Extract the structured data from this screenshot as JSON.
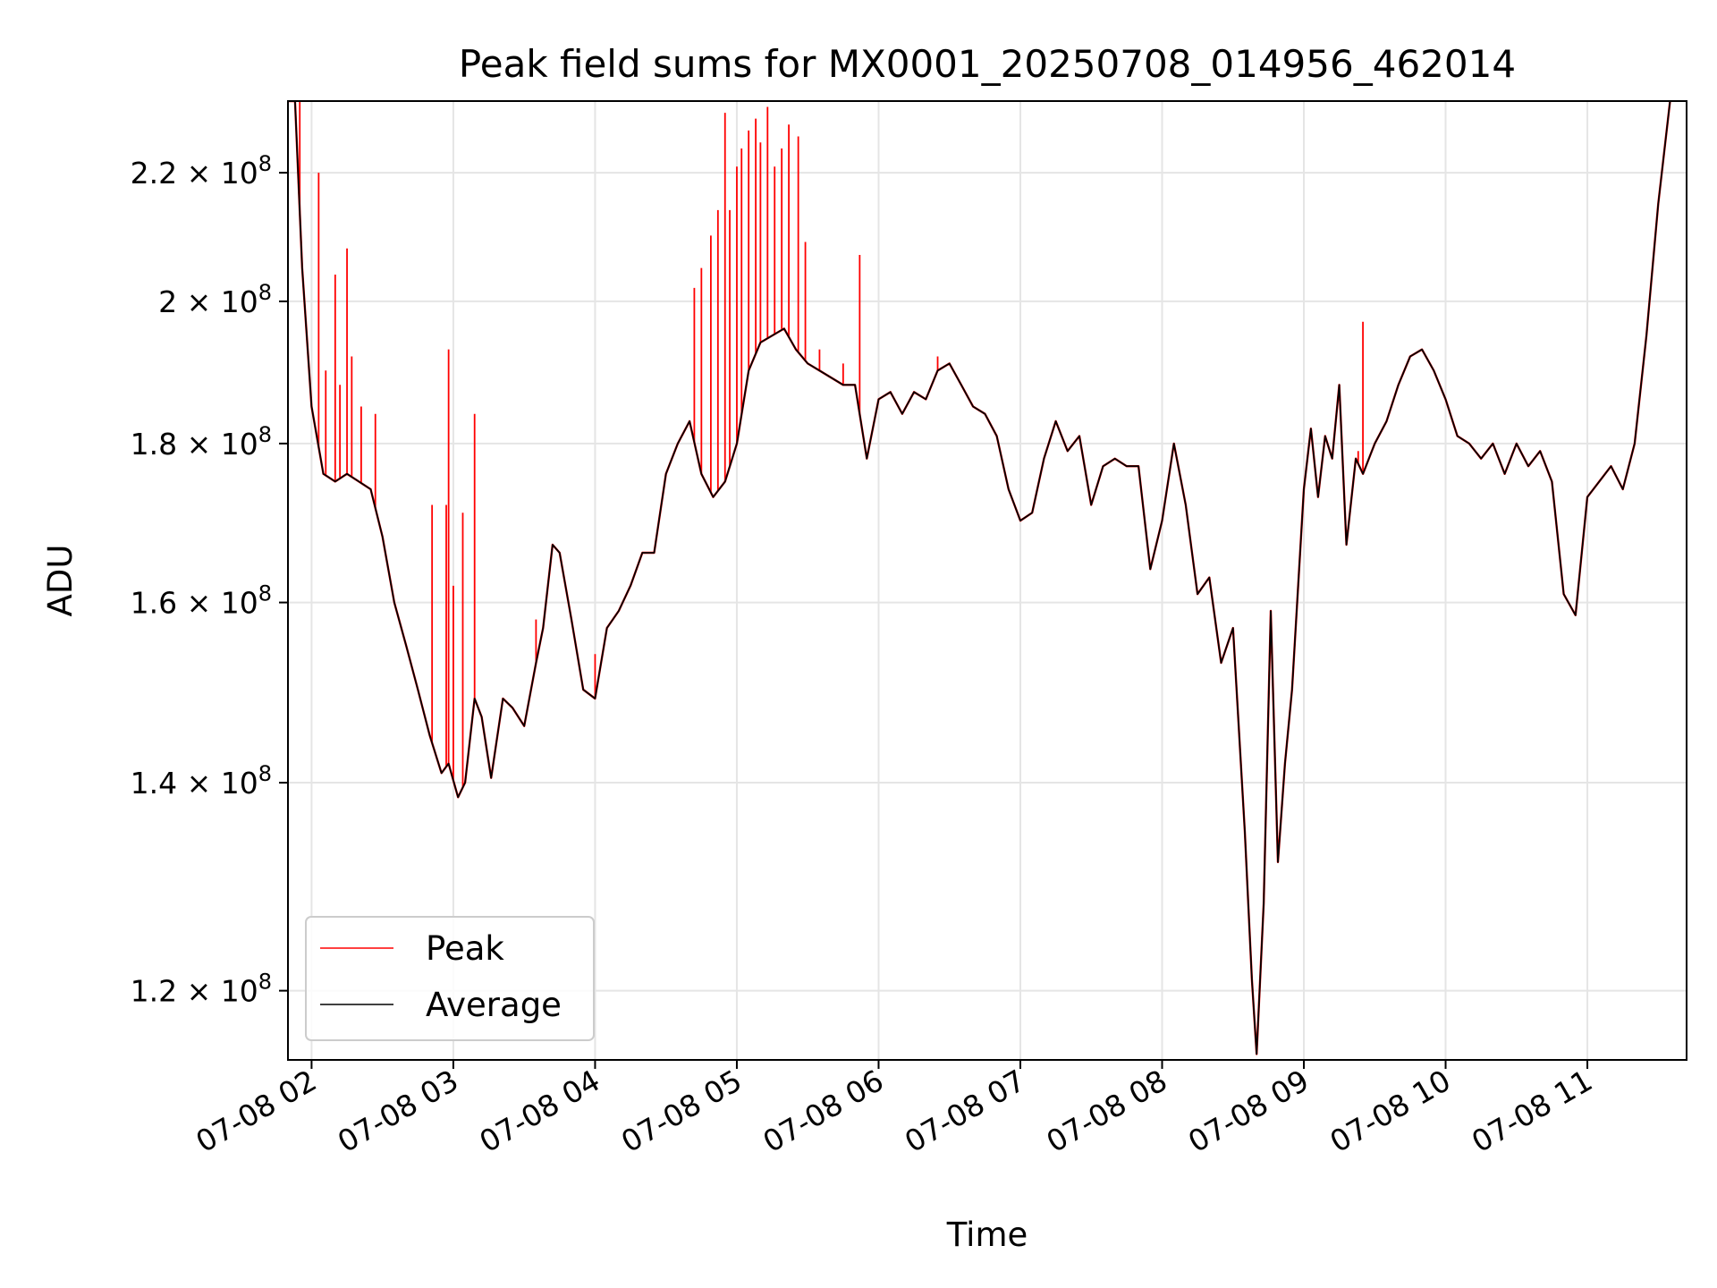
{
  "chart_data": {
    "type": "line",
    "title": "Peak field sums for MX0001_20250708_014956_462014",
    "xlabel": "Time",
    "ylabel": "ADU",
    "yscale": "log",
    "grid": true,
    "legend_position": "lower-left",
    "xlim": [
      "07-08 01:50",
      "07-08 11:42"
    ],
    "ylim": [
      114000000,
      232000000
    ],
    "x_ticks": [
      "07-08 02",
      "07-08 03",
      "07-08 04",
      "07-08 05",
      "07-08 06",
      "07-08 07",
      "07-08 08",
      "07-08 09",
      "07-08 10",
      "07-08 11"
    ],
    "y_ticks": [
      {
        "value": 120000000,
        "mantissa": "1.2",
        "exponent": "8"
      },
      {
        "value": 140000000,
        "mantissa": "1.4",
        "exponent": "8"
      },
      {
        "value": 160000000,
        "mantissa": "1.6",
        "exponent": "8"
      },
      {
        "value": 180000000,
        "mantissa": "1.8",
        "exponent": "8"
      },
      {
        "value": 200000000,
        "mantissa": "2",
        "exponent": "8"
      },
      {
        "value": 220000000,
        "mantissa": "2.2",
        "exponent": "8"
      }
    ],
    "series": [
      {
        "name": "Average",
        "color": "#000000",
        "points": [
          [
            "07-08 01:50",
            232000000
          ],
          [
            "07-08 01:53",
            232000000
          ],
          [
            "07-08 01:56",
            205000000
          ],
          [
            "07-08 02:00",
            185000000
          ],
          [
            "07-08 02:05",
            176000000
          ],
          [
            "07-08 02:10",
            175000000
          ],
          [
            "07-08 02:15",
            176000000
          ],
          [
            "07-08 02:20",
            175000000
          ],
          [
            "07-08 02:25",
            174000000
          ],
          [
            "07-08 02:30",
            168000000
          ],
          [
            "07-08 02:35",
            160000000
          ],
          [
            "07-08 02:40",
            155000000
          ],
          [
            "07-08 02:45",
            150000000
          ],
          [
            "07-08 02:50",
            145000000
          ],
          [
            "07-08 02:55",
            141000000
          ],
          [
            "07-08 02:58",
            142000000
          ],
          [
            "07-08 03:02",
            138500000
          ],
          [
            "07-08 03:05",
            140000000
          ],
          [
            "07-08 03:09",
            149000000
          ],
          [
            "07-08 03:12",
            147000000
          ],
          [
            "07-08 03:16",
            140500000
          ],
          [
            "07-08 03:21",
            149000000
          ],
          [
            "07-08 03:25",
            148000000
          ],
          [
            "07-08 03:30",
            146000000
          ],
          [
            "07-08 03:35",
            153000000
          ],
          [
            "07-08 03:38",
            157000000
          ],
          [
            "07-08 03:42",
            167000000
          ],
          [
            "07-08 03:45",
            166000000
          ],
          [
            "07-08 03:50",
            158000000
          ],
          [
            "07-08 03:55",
            150000000
          ],
          [
            "07-08 04:00",
            149000000
          ],
          [
            "07-08 04:05",
            157000000
          ],
          [
            "07-08 04:10",
            159000000
          ],
          [
            "07-08 04:15",
            162000000
          ],
          [
            "07-08 04:20",
            166000000
          ],
          [
            "07-08 04:25",
            166000000
          ],
          [
            "07-08 04:30",
            176000000
          ],
          [
            "07-08 04:35",
            180000000
          ],
          [
            "07-08 04:40",
            183000000
          ],
          [
            "07-08 04:45",
            176000000
          ],
          [
            "07-08 04:50",
            173000000
          ],
          [
            "07-08 04:55",
            175000000
          ],
          [
            "07-08 05:00",
            180000000
          ],
          [
            "07-08 05:05",
            190000000
          ],
          [
            "07-08 05:10",
            194000000
          ],
          [
            "07-08 05:15",
            195000000
          ],
          [
            "07-08 05:20",
            196000000
          ],
          [
            "07-08 05:25",
            193000000
          ],
          [
            "07-08 05:30",
            191000000
          ],
          [
            "07-08 05:35",
            190000000
          ],
          [
            "07-08 05:40",
            189000000
          ],
          [
            "07-08 05:45",
            188000000
          ],
          [
            "07-08 05:50",
            188000000
          ],
          [
            "07-08 05:55",
            178000000
          ],
          [
            "07-08 06:00",
            186000000
          ],
          [
            "07-08 06:05",
            187000000
          ],
          [
            "07-08 06:10",
            184000000
          ],
          [
            "07-08 06:15",
            187000000
          ],
          [
            "07-08 06:20",
            186000000
          ],
          [
            "07-08 06:25",
            190000000
          ],
          [
            "07-08 06:30",
            191000000
          ],
          [
            "07-08 06:35",
            188000000
          ],
          [
            "07-08 06:40",
            185000000
          ],
          [
            "07-08 06:45",
            184000000
          ],
          [
            "07-08 06:50",
            181000000
          ],
          [
            "07-08 06:55",
            174000000
          ],
          [
            "07-08 07:00",
            170000000
          ],
          [
            "07-08 07:05",
            171000000
          ],
          [
            "07-08 07:10",
            178000000
          ],
          [
            "07-08 07:15",
            183000000
          ],
          [
            "07-08 07:20",
            179000000
          ],
          [
            "07-08 07:25",
            181000000
          ],
          [
            "07-08 07:30",
            172000000
          ],
          [
            "07-08 07:35",
            177000000
          ],
          [
            "07-08 07:40",
            178000000
          ],
          [
            "07-08 07:45",
            177000000
          ],
          [
            "07-08 07:50",
            177000000
          ],
          [
            "07-08 07:55",
            164000000
          ],
          [
            "07-08 08:00",
            170000000
          ],
          [
            "07-08 08:05",
            180000000
          ],
          [
            "07-08 08:10",
            172000000
          ],
          [
            "07-08 08:15",
            161000000
          ],
          [
            "07-08 08:20",
            163000000
          ],
          [
            "07-08 08:25",
            153000000
          ],
          [
            "07-08 08:30",
            157000000
          ],
          [
            "07-08 08:35",
            135000000
          ],
          [
            "07-08 08:38",
            121000000
          ],
          [
            "07-08 08:40",
            114500000
          ],
          [
            "07-08 08:43",
            128000000
          ],
          [
            "07-08 08:46",
            159000000
          ],
          [
            "07-08 08:49",
            132000000
          ],
          [
            "07-08 08:52",
            142000000
          ],
          [
            "07-08 08:55",
            150000000
          ],
          [
            "07-08 09:00",
            174000000
          ],
          [
            "07-08 09:03",
            182000000
          ],
          [
            "07-08 09:06",
            173000000
          ],
          [
            "07-08 09:09",
            181000000
          ],
          [
            "07-08 09:12",
            178000000
          ],
          [
            "07-08 09:15",
            188000000
          ],
          [
            "07-08 09:18",
            167000000
          ],
          [
            "07-08 09:22",
            178000000
          ],
          [
            "07-08 09:25",
            176000000
          ],
          [
            "07-08 09:30",
            180000000
          ],
          [
            "07-08 09:35",
            183000000
          ],
          [
            "07-08 09:40",
            188000000
          ],
          [
            "07-08 09:45",
            192000000
          ],
          [
            "07-08 09:50",
            193000000
          ],
          [
            "07-08 09:55",
            190000000
          ],
          [
            "07-08 10:00",
            186000000
          ],
          [
            "07-08 10:05",
            181000000
          ],
          [
            "07-08 10:10",
            180000000
          ],
          [
            "07-08 10:15",
            178000000
          ],
          [
            "07-08 10:20",
            180000000
          ],
          [
            "07-08 10:25",
            176000000
          ],
          [
            "07-08 10:30",
            180000000
          ],
          [
            "07-08 10:35",
            177000000
          ],
          [
            "07-08 10:40",
            179000000
          ],
          [
            "07-08 10:45",
            175000000
          ],
          [
            "07-08 10:50",
            161000000
          ],
          [
            "07-08 10:55",
            158500000
          ],
          [
            "07-08 11:00",
            173000000
          ],
          [
            "07-08 11:05",
            175000000
          ],
          [
            "07-08 11:10",
            177000000
          ],
          [
            "07-08 11:15",
            174000000
          ],
          [
            "07-08 11:20",
            180000000
          ],
          [
            "07-08 11:25",
            195000000
          ],
          [
            "07-08 11:30",
            215000000
          ],
          [
            "07-08 11:35",
            232000000
          ]
        ]
      },
      {
        "name": "Peak",
        "color": "#ff0000",
        "spikes": [
          [
            "07-08 01:55",
            232000000
          ],
          [
            "07-08 02:03",
            220000000
          ],
          [
            "07-08 02:06",
            190000000
          ],
          [
            "07-08 02:10",
            204000000
          ],
          [
            "07-08 02:12",
            188000000
          ],
          [
            "07-08 02:15",
            208000000
          ],
          [
            "07-08 02:17",
            192000000
          ],
          [
            "07-08 02:21",
            185000000
          ],
          [
            "07-08 02:27",
            184000000
          ],
          [
            "07-08 02:38",
            157000000
          ],
          [
            "07-08 02:51",
            172000000
          ],
          [
            "07-08 02:57",
            172000000
          ],
          [
            "07-08 02:58",
            193000000
          ],
          [
            "07-08 03:00",
            162000000
          ],
          [
            "07-08 03:04",
            171000000
          ],
          [
            "07-08 03:09",
            184000000
          ],
          [
            "07-08 03:35",
            158000000
          ],
          [
            "07-08 04:00",
            154000000
          ],
          [
            "07-08 04:42",
            202000000
          ],
          [
            "07-08 04:45",
            205000000
          ],
          [
            "07-08 04:49",
            210000000
          ],
          [
            "07-08 04:52",
            214000000
          ],
          [
            "07-08 04:55",
            230000000
          ],
          [
            "07-08 04:57",
            214000000
          ],
          [
            "07-08 05:00",
            221000000
          ],
          [
            "07-08 05:02",
            224000000
          ],
          [
            "07-08 05:05",
            227000000
          ],
          [
            "07-08 05:08",
            229000000
          ],
          [
            "07-08 05:10",
            225000000
          ],
          [
            "07-08 05:13",
            231000000
          ],
          [
            "07-08 05:16",
            221000000
          ],
          [
            "07-08 05:19",
            224000000
          ],
          [
            "07-08 05:22",
            228000000
          ],
          [
            "07-08 05:26",
            226000000
          ],
          [
            "07-08 05:29",
            209000000
          ],
          [
            "07-08 05:35",
            193000000
          ],
          [
            "07-08 05:45",
            191000000
          ],
          [
            "07-08 05:52",
            207000000
          ],
          [
            "07-08 06:25",
            192000000
          ],
          [
            "07-08 09:25",
            197000000
          ],
          [
            "07-08 09:23",
            179000000
          ]
        ]
      }
    ]
  },
  "legend": [
    {
      "label": "Peak",
      "color": "#ff0000"
    },
    {
      "label": "Average",
      "color": "#000000"
    }
  ]
}
